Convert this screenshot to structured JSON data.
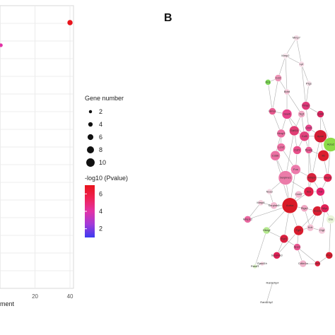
{
  "panel_label": "B",
  "chart_data": [
    {
      "type": "scatter",
      "xlabel_fragment": "ment",
      "x_ticks": [
        "20",
        "40"
      ],
      "xlim": [
        0,
        42
      ],
      "grid": true,
      "points": [
        {
          "x": 40,
          "y": 0.94,
          "size": 4,
          "log10p": 6.8
        },
        {
          "x": 0.5,
          "y": 0.86,
          "size": 2,
          "log10p": 3.6
        }
      ],
      "legend_size": {
        "title": "Gene number",
        "entries": [
          "2",
          "4",
          "6",
          "8",
          "10"
        ],
        "values": [
          2,
          4,
          6,
          8,
          10
        ]
      },
      "legend_color": {
        "title": "-log10 (Pvalue)",
        "ticks": [
          "6",
          "4",
          "2"
        ],
        "tick_values": [
          6,
          4,
          2
        ],
        "range": [
          1,
          7
        ],
        "colors": [
          "#3b3bf0",
          "#a23bd9",
          "#e233a6",
          "#ef2255",
          "#e8141c"
        ]
      }
    },
    {
      "type": "network",
      "nodes": [
        {
          "id": "n1",
          "label": "Mmp7",
          "x": 0.735,
          "y": 0.045,
          "r": 4,
          "color": "#f6dde7"
        },
        {
          "id": "n2",
          "label": "Mmp2",
          "x": 0.66,
          "y": 0.11,
          "r": 4,
          "color": "#f9e7ee"
        },
        {
          "id": "n3",
          "label": "Lpl",
          "x": 0.77,
          "y": 0.14,
          "r": 4,
          "color": "#f7dbe6"
        },
        {
          "id": "n4",
          "label": "Ccl2",
          "x": 0.61,
          "y": 0.19,
          "r": 5,
          "color": "#ee95b7"
        },
        {
          "id": "n5",
          "label": "Fn1",
          "x": 0.54,
          "y": 0.205,
          "r": 4,
          "color": "#7ed957"
        },
        {
          "id": "n6",
          "label": "Ptgs",
          "x": 0.82,
          "y": 0.21,
          "r": 4,
          "color": "#f8e3eb"
        },
        {
          "id": "n7",
          "label": "Bdnf",
          "x": 0.67,
          "y": 0.24,
          "r": 4,
          "color": "#f3c4d6"
        },
        {
          "id": "n8",
          "label": "Timp1",
          "x": 0.8,
          "y": 0.29,
          "r": 6,
          "color": "#e0397a"
        },
        {
          "id": "n9",
          "label": "Hmox",
          "x": 0.57,
          "y": 0.31,
          "r": 5,
          "color": "#e85a90"
        },
        {
          "id": "n10",
          "label": "Gas6",
          "x": 0.67,
          "y": 0.32,
          "r": 7,
          "color": "#e6448b"
        },
        {
          "id": "n11",
          "label": "Ngf",
          "x": 0.77,
          "y": 0.32,
          "r": 5,
          "color": "#f0a9c4"
        },
        {
          "id": "n12",
          "label": "Cxcl1",
          "x": 0.82,
          "y": 0.37,
          "r": 5,
          "color": "#e6448b"
        },
        {
          "id": "n13",
          "label": "Cd44",
          "x": 0.9,
          "y": 0.32,
          "r": 5,
          "color": "#d9245e"
        },
        {
          "id": "n14",
          "label": "Gdf15",
          "x": 0.72,
          "y": 0.38,
          "r": 7,
          "color": "#e03d74"
        },
        {
          "id": "n15",
          "label": "Mmp3",
          "x": 0.63,
          "y": 0.39,
          "r": 6,
          "color": "#ec6ea1"
        },
        {
          "id": "n16",
          "label": "Ccl5",
          "x": 0.79,
          "y": 0.4,
          "r": 7,
          "color": "#e1437d"
        },
        {
          "id": "n17",
          "label": "Apoe",
          "x": 0.9,
          "y": 0.4,
          "r": 9,
          "color": "#d31e34"
        },
        {
          "id": "n18",
          "label": "Acta2",
          "x": 0.97,
          "y": 0.43,
          "r": 10,
          "color": "#8ddb49"
        },
        {
          "id": "n19",
          "label": "Lcn2",
          "x": 0.63,
          "y": 0.44,
          "r": 6,
          "color": "#ec6ea1"
        },
        {
          "id": "n20",
          "label": "Pparg",
          "x": 0.82,
          "y": 0.45,
          "r": 5,
          "color": "#ea5b93"
        },
        {
          "id": "n21",
          "label": "Csf1",
          "x": 0.74,
          "y": 0.45,
          "r": 6,
          "color": "#e94f8a"
        },
        {
          "id": "n22",
          "label": "Cd36",
          "x": 0.59,
          "y": 0.47,
          "r": 7,
          "color": "#eb70a3"
        },
        {
          "id": "n23",
          "label": "Il6",
          "x": 0.92,
          "y": 0.47,
          "r": 8,
          "color": "#dc1f2e"
        },
        {
          "id": "n24",
          "label": "Fos",
          "x": 0.73,
          "y": 0.52,
          "r": 7,
          "color": "#ec7aab"
        },
        {
          "id": "n25",
          "label": "Mmp9",
          "x": 0.84,
          "y": 0.55,
          "r": 7,
          "color": "#d8223d"
        },
        {
          "id": "n26",
          "label": "Serpine1",
          "x": 0.66,
          "y": 0.55,
          "r": 10,
          "color": "#eb7ca9"
        },
        {
          "id": "n27",
          "label": "Il1b",
          "x": 0.82,
          "y": 0.6,
          "r": 7,
          "color": "#e0204a"
        },
        {
          "id": "n28",
          "label": "Tnf",
          "x": 0.9,
          "y": 0.6,
          "r": 6,
          "color": "#e3236d"
        },
        {
          "id": "n29",
          "label": "Cxcl2",
          "x": 0.75,
          "y": 0.61,
          "r": 5,
          "color": "#f2b8cf"
        },
        {
          "id": "n30",
          "label": "Nos2",
          "x": 0.55,
          "y": 0.6,
          "r": 4,
          "color": "#f7d8e4"
        },
        {
          "id": "n31",
          "label": "Mmp8",
          "x": 0.49,
          "y": 0.64,
          "r": 4,
          "color": "#f5cedd"
        },
        {
          "id": "n32",
          "label": "Vegfa",
          "x": 0.95,
          "y": 0.55,
          "r": 6,
          "color": "#e22652"
        },
        {
          "id": "n33",
          "label": "Aurka",
          "x": 0.69,
          "y": 0.65,
          "r": 11,
          "color": "#d81a26"
        },
        {
          "id": "n34",
          "label": "Serpinb2",
          "x": 0.58,
          "y": 0.65,
          "r": 5,
          "color": "#f2bad0"
        },
        {
          "id": "n35",
          "label": "Ptgs2",
          "x": 0.79,
          "y": 0.66,
          "r": 5,
          "color": "#f0a6c2"
        },
        {
          "id": "n36",
          "label": "Socs3",
          "x": 0.88,
          "y": 0.67,
          "r": 7,
          "color": "#d91f33"
        },
        {
          "id": "n37",
          "label": "Myc",
          "x": 0.93,
          "y": 0.66,
          "r": 6,
          "color": "#e02156"
        },
        {
          "id": "n38",
          "label": "Clu",
          "x": 0.97,
          "y": 0.7,
          "r": 6,
          "color": "#eaf5da"
        },
        {
          "id": "n39",
          "label": "Mmp12",
          "x": 0.4,
          "y": 0.7,
          "r": 5,
          "color": "#ea67a0"
        },
        {
          "id": "n40",
          "label": "Fgf2",
          "x": 0.75,
          "y": 0.74,
          "r": 7,
          "color": "#d91c2e"
        },
        {
          "id": "n41",
          "label": "Kdr",
          "x": 0.83,
          "y": 0.73,
          "r": 5,
          "color": "#f3c0d3"
        },
        {
          "id": "n42",
          "label": "Hbegf",
          "x": 0.53,
          "y": 0.74,
          "r": 5,
          "color": "#b5e88f"
        },
        {
          "id": "n43",
          "label": "Ctgf",
          "x": 0.91,
          "y": 0.74,
          "r": 5,
          "color": "#f4cadb"
        },
        {
          "id": "n44",
          "label": "Egr1",
          "x": 0.65,
          "y": 0.77,
          "r": 6,
          "color": "#d91f3e"
        },
        {
          "id": "n45",
          "label": "Spp1",
          "x": 0.74,
          "y": 0.8,
          "r": 5,
          "color": "#ea5590"
        },
        {
          "id": "n46",
          "label": "Cdkn1a",
          "x": 0.78,
          "y": 0.86,
          "r": 5,
          "color": "#f1b3cb"
        },
        {
          "id": "n47",
          "label": "Atf3",
          "x": 0.88,
          "y": 0.86,
          "r": 4,
          "color": "#e01f3f"
        },
        {
          "id": "n48",
          "label": "Ptx3",
          "x": 0.96,
          "y": 0.83,
          "r": 5,
          "color": "#d91c2e"
        },
        {
          "id": "n49",
          "label": "Serpina3",
          "x": 0.6,
          "y": 0.83,
          "r": 5,
          "color": "#e02156"
        },
        {
          "id": "n50",
          "label": "Rasd1",
          "x": 0.45,
          "y": 0.87,
          "r": 3,
          "color": "#d9f2c4"
        },
        {
          "id": "n51",
          "label": "Rasd1b",
          "x": 0.5,
          "y": 0.86,
          "r": 3,
          "color": "#f5d3e0"
        },
        {
          "id": "n52",
          "label": "Rab11fip4",
          "x": 0.57,
          "y": 0.93,
          "r": 1,
          "color": "#9a9a9a"
        },
        {
          "id": "n53",
          "label": "Rab11fip2",
          "x": 0.53,
          "y": 1.0,
          "r": 1,
          "color": "#9a9a9a"
        }
      ],
      "edges": [
        [
          "n1",
          "n2"
        ],
        [
          "n1",
          "n3"
        ],
        [
          "n2",
          "n3"
        ],
        [
          "n2",
          "n4"
        ],
        [
          "n3",
          "n6"
        ],
        [
          "n2",
          "n7"
        ],
        [
          "n3",
          "n8"
        ],
        [
          "n6",
          "n8"
        ],
        [
          "n4",
          "n5"
        ],
        [
          "n4",
          "n7"
        ],
        [
          "n4",
          "n9"
        ],
        [
          "n5",
          "n9"
        ],
        [
          "n7",
          "n10"
        ],
        [
          "n7",
          "n11"
        ],
        [
          "n8",
          "n13"
        ],
        [
          "n8",
          "n12"
        ],
        [
          "n9",
          "n10"
        ],
        [
          "n9",
          "n15"
        ],
        [
          "n10",
          "n14"
        ],
        [
          "n10",
          "n15"
        ],
        [
          "n11",
          "n14"
        ],
        [
          "n11",
          "n16"
        ],
        [
          "n12",
          "n16"
        ],
        [
          "n12",
          "n17"
        ],
        [
          "n13",
          "n17"
        ],
        [
          "n13",
          "n18"
        ],
        [
          "n14",
          "n16"
        ],
        [
          "n14",
          "n21"
        ],
        [
          "n15",
          "n19"
        ],
        [
          "n15",
          "n22"
        ],
        [
          "n16",
          "n17"
        ],
        [
          "n16",
          "n20"
        ],
        [
          "n17",
          "n18"
        ],
        [
          "n17",
          "n23"
        ],
        [
          "n18",
          "n23"
        ],
        [
          "n19",
          "n22"
        ],
        [
          "n19",
          "n24"
        ],
        [
          "n20",
          "n23"
        ],
        [
          "n20",
          "n25"
        ],
        [
          "n21",
          "n24"
        ],
        [
          "n21",
          "n16"
        ],
        [
          "n22",
          "n26"
        ],
        [
          "n24",
          "n26"
        ],
        [
          "n24",
          "n25"
        ],
        [
          "n25",
          "n27"
        ],
        [
          "n25",
          "n28"
        ],
        [
          "n25",
          "n32"
        ],
        [
          "n26",
          "n33"
        ],
        [
          "n27",
          "n33"
        ],
        [
          "n27",
          "n28"
        ],
        [
          "n28",
          "n32"
        ],
        [
          "n28",
          "n37"
        ],
        [
          "n29",
          "n33"
        ],
        [
          "n29",
          "n27"
        ],
        [
          "n30",
          "n26"
        ],
        [
          "n30",
          "n34"
        ],
        [
          "n31",
          "n34"
        ],
        [
          "n31",
          "n39"
        ],
        [
          "n33",
          "n34"
        ],
        [
          "n33",
          "n35"
        ],
        [
          "n33",
          "n40"
        ],
        [
          "n33",
          "n44"
        ],
        [
          "n35",
          "n36"
        ],
        [
          "n36",
          "n37"
        ],
        [
          "n36",
          "n41"
        ],
        [
          "n37",
          "n38"
        ],
        [
          "n37",
          "n43"
        ],
        [
          "n38",
          "n48"
        ],
        [
          "n39",
          "n33"
        ],
        [
          "n40",
          "n41"
        ],
        [
          "n40",
          "n45"
        ],
        [
          "n41",
          "n43"
        ],
        [
          "n42",
          "n44"
        ],
        [
          "n42",
          "n33"
        ],
        [
          "n42",
          "n50"
        ],
        [
          "n44",
          "n45"
        ],
        [
          "n44",
          "n49"
        ],
        [
          "n45",
          "n46"
        ],
        [
          "n45",
          "n47"
        ],
        [
          "n46",
          "n47"
        ],
        [
          "n47",
          "n48"
        ],
        [
          "n49",
          "n40"
        ],
        [
          "n50",
          "n51"
        ],
        [
          "n52",
          "n53"
        ],
        [
          "n10",
          "n16"
        ],
        [
          "n14",
          "n26"
        ],
        [
          "n17",
          "n25"
        ],
        [
          "n20",
          "n27"
        ],
        [
          "n23",
          "n32"
        ],
        [
          "n22",
          "n33"
        ],
        [
          "n24",
          "n33"
        ],
        [
          "n26",
          "n27"
        ],
        [
          "n36",
          "n40"
        ],
        [
          "n35",
          "n41"
        ],
        [
          "n12",
          "n20"
        ],
        [
          "n18",
          "n32"
        ]
      ]
    }
  ]
}
